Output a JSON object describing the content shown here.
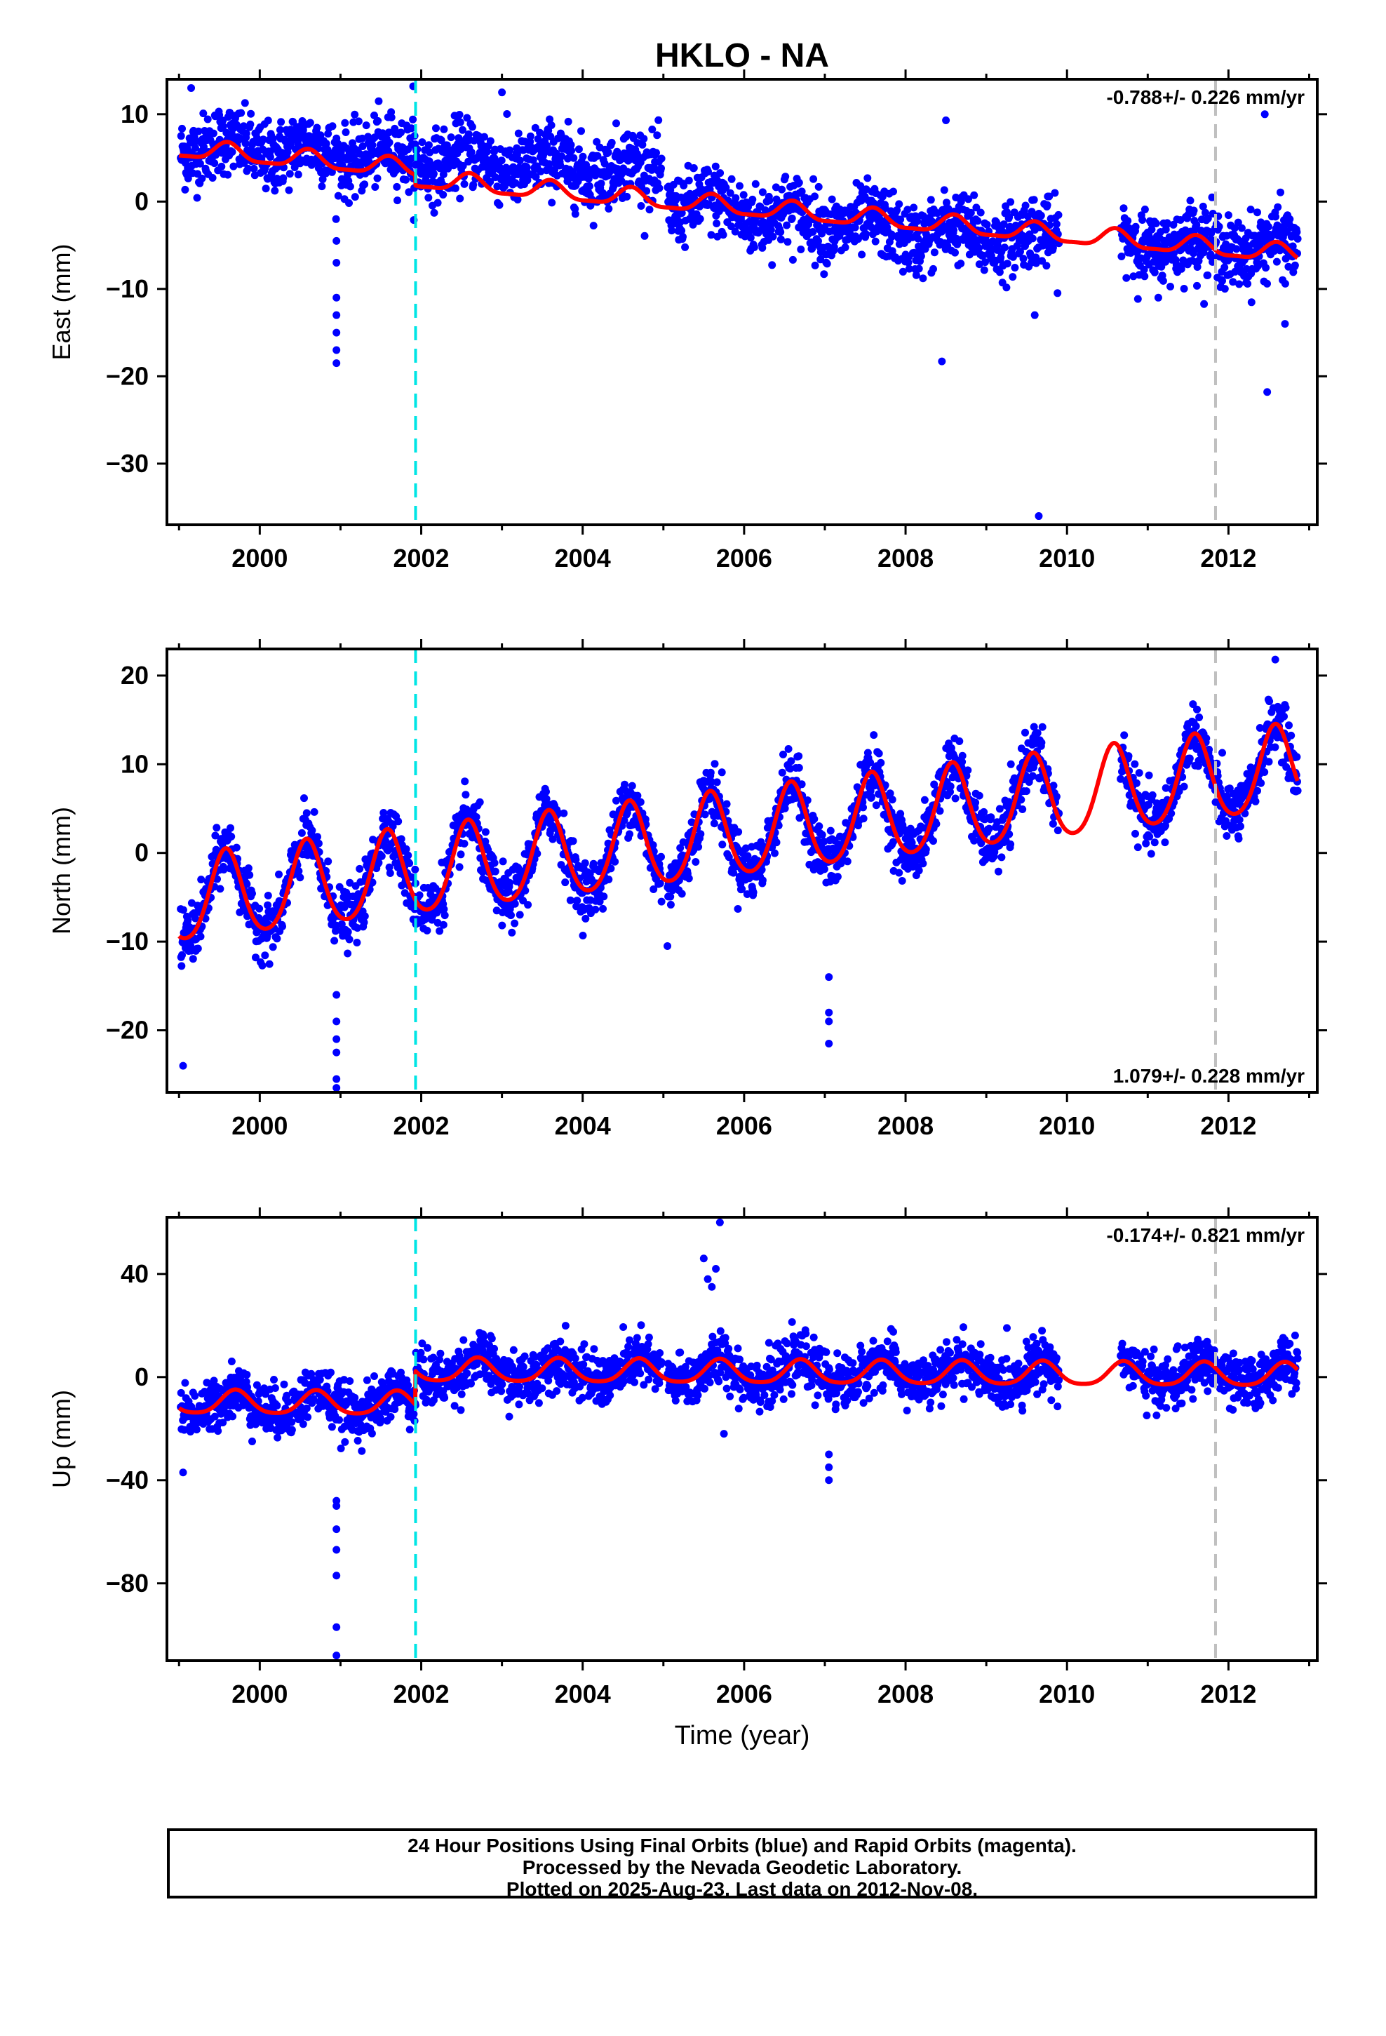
{
  "title": "HKLO - NA",
  "xlabel": "Time (year)",
  "colors": {
    "points": "#0000ff",
    "fit": "#ff0000",
    "break_cyan": "#00e5e5",
    "break_gray": "#c0c0c0"
  },
  "chart_data": [
    {
      "type": "scatter",
      "ylabel": "East (mm)",
      "rate_label": "-0.788+/- 0.226 mm/yr",
      "rate_position": "top-right",
      "xlim": [
        1998.85,
        2013.1
      ],
      "ylim": [
        -37,
        14
      ],
      "x_ticks": [
        2000,
        2002,
        2004,
        2006,
        2008,
        2010,
        2012
      ],
      "x_tick_labels": [
        "2000",
        "2002",
        "2004",
        "2006",
        "2008",
        "2010",
        "2012"
      ],
      "y_ticks": [
        10,
        0,
        -10,
        -20,
        -30
      ],
      "y_tick_labels": [
        "10",
        "0",
        "−10",
        "−20",
        "−30"
      ],
      "breaks": [
        {
          "x": 2001.93,
          "color": "cyan"
        },
        {
          "x": 2011.84,
          "color": "gray"
        }
      ],
      "gaps": [
        [
          2004.98,
          2005.05
        ],
        [
          2009.9,
          2010.66
        ]
      ],
      "model": {
        "intercept": 6.0,
        "rate": -0.788,
        "annual_amp": 1.0,
        "annual_phase": 0.6,
        "semi_amp": 0.3,
        "offsets": [
          {
            "x": 2001.93,
            "dy": -1.2
          }
        ],
        "noise": 2.0
      },
      "segments": [
        {
          "start": 1999.0,
          "end": 2002.95,
          "level_start": 6.5,
          "level_end": 4.5
        },
        {
          "start": 2002.95,
          "end": 2004.99,
          "level_start": 4.5,
          "level_end": 3.5
        },
        {
          "start": 2005.05,
          "end": 2008.0,
          "level_start": 0.0,
          "level_end": -3.5
        },
        {
          "start": 2008.0,
          "end": 2012.85,
          "level_start": -3.5,
          "level_end": -5.5
        }
      ],
      "outliers": [
        {
          "x": 2000.95,
          "y": -4.5
        },
        {
          "x": 2000.95,
          "y": -7.0
        },
        {
          "x": 2000.95,
          "y": -11.0
        },
        {
          "x": 2000.95,
          "y": -13.0
        },
        {
          "x": 2000.95,
          "y": -15.0
        },
        {
          "x": 2000.95,
          "y": -17.0
        },
        {
          "x": 2000.95,
          "y": -18.5
        },
        {
          "x": 1999.15,
          "y": 13.0
        },
        {
          "x": 2001.9,
          "y": 13.2
        },
        {
          "x": 2003.0,
          "y": 12.5
        },
        {
          "x": 2008.5,
          "y": 9.3
        },
        {
          "x": 2008.45,
          "y": -18.3
        },
        {
          "x": 2009.65,
          "y": -36.0
        },
        {
          "x": 2012.48,
          "y": -21.8
        },
        {
          "x": 2012.45,
          "y": 10.0
        },
        {
          "x": 2009.6,
          "y": -13.0
        },
        {
          "x": 2012.7,
          "y": -14.0
        }
      ]
    },
    {
      "type": "scatter",
      "ylabel": "North (mm)",
      "rate_label": "1.079+/- 0.228 mm/yr",
      "rate_position": "bottom-right",
      "xlim": [
        1998.85,
        2013.1
      ],
      "ylim": [
        -27,
        23
      ],
      "x_ticks": [
        2000,
        2002,
        2004,
        2006,
        2008,
        2010,
        2012
      ],
      "x_tick_labels": [
        "2000",
        "2002",
        "2004",
        "2006",
        "2008",
        "2010",
        "2012"
      ],
      "y_ticks": [
        20,
        10,
        0,
        -10,
        -20
      ],
      "y_tick_labels": [
        "20",
        "10",
        "0",
        "−10",
        "−20"
      ],
      "breaks": [
        {
          "x": 2001.93,
          "color": "cyan"
        },
        {
          "x": 2011.84,
          "color": "gray"
        }
      ],
      "gaps": [
        [
          2004.98,
          2005.05
        ],
        [
          2009.9,
          2010.66
        ]
      ],
      "model": {
        "intercept": -5.5,
        "rate": 1.079,
        "annual_amp": 4.8,
        "annual_phase": 0.58,
        "semi_amp": 0.6,
        "offsets": [],
        "noise": 1.6
      },
      "outliers": [
        {
          "x": 1999.05,
          "y": -24.0
        },
        {
          "x": 2000.95,
          "y": -16.0
        },
        {
          "x": 2000.95,
          "y": -19.0
        },
        {
          "x": 2000.95,
          "y": -21.0
        },
        {
          "x": 2000.95,
          "y": -22.5
        },
        {
          "x": 2000.95,
          "y": -25.5
        },
        {
          "x": 2000.95,
          "y": -26.5
        },
        {
          "x": 2007.05,
          "y": -14.0
        },
        {
          "x": 2007.05,
          "y": -18.0
        },
        {
          "x": 2007.05,
          "y": -19.0
        },
        {
          "x": 2007.05,
          "y": -21.5
        },
        {
          "x": 2012.58,
          "y": 21.8
        },
        {
          "x": 2005.05,
          "y": -10.5
        }
      ]
    },
    {
      "type": "scatter",
      "ylabel": "Up (mm)",
      "rate_label": "-0.174+/- 0.821 mm/yr",
      "rate_position": "top-right",
      "xlim": [
        1998.85,
        2013.1
      ],
      "ylim": [
        -110,
        62
      ],
      "x_ticks": [
        2000,
        2002,
        2004,
        2006,
        2008,
        2010,
        2012
      ],
      "x_tick_labels": [
        "2000",
        "2002",
        "2004",
        "2006",
        "2008",
        "2010",
        "2012"
      ],
      "y_ticks": [
        40,
        0,
        -40,
        -80
      ],
      "y_tick_labels": [
        "40",
        "0",
        "−40",
        "−80"
      ],
      "breaks": [
        {
          "x": 2001.93,
          "color": "cyan"
        },
        {
          "x": 2011.84,
          "color": "gray"
        }
      ],
      "gaps": [
        [
          2004.98,
          2005.05
        ],
        [
          2009.9,
          2010.66
        ]
      ],
      "model": {
        "intercept": -10.0,
        "rate": -0.174,
        "annual_amp": 4.5,
        "annual_phase": 0.7,
        "semi_amp": 0.8,
        "offsets": [
          {
            "x": 2001.93,
            "dy": 13.0
          }
        ],
        "noise": 5.0
      },
      "outliers": [
        {
          "x": 1999.05,
          "y": -37.0
        },
        {
          "x": 2000.95,
          "y": -48.0
        },
        {
          "x": 2000.95,
          "y": -50.0
        },
        {
          "x": 2000.95,
          "y": -59.0
        },
        {
          "x": 2000.95,
          "y": -67.0
        },
        {
          "x": 2000.95,
          "y": -77.0
        },
        {
          "x": 2000.95,
          "y": -97.0
        },
        {
          "x": 2000.95,
          "y": -108.0
        },
        {
          "x": 2005.7,
          "y": 60.0
        },
        {
          "x": 2005.5,
          "y": 46.0
        },
        {
          "x": 2005.55,
          "y": 38.0
        },
        {
          "x": 2005.6,
          "y": 35.0
        },
        {
          "x": 2005.75,
          "y": -22.0
        },
        {
          "x": 2007.05,
          "y": -40.0
        },
        {
          "x": 2007.05,
          "y": -35.0
        },
        {
          "x": 2007.05,
          "y": -30.0
        },
        {
          "x": 2005.65,
          "y": 42.0
        }
      ]
    }
  ],
  "footer": {
    "line1": "24 Hour Positions Using Final Orbits (blue) and Rapid Orbits (magenta).",
    "line2": "Processed by the Nevada Geodetic Laboratory.",
    "line3": "Plotted on 2025-Aug-23. Last data on 2012-Nov-08."
  }
}
